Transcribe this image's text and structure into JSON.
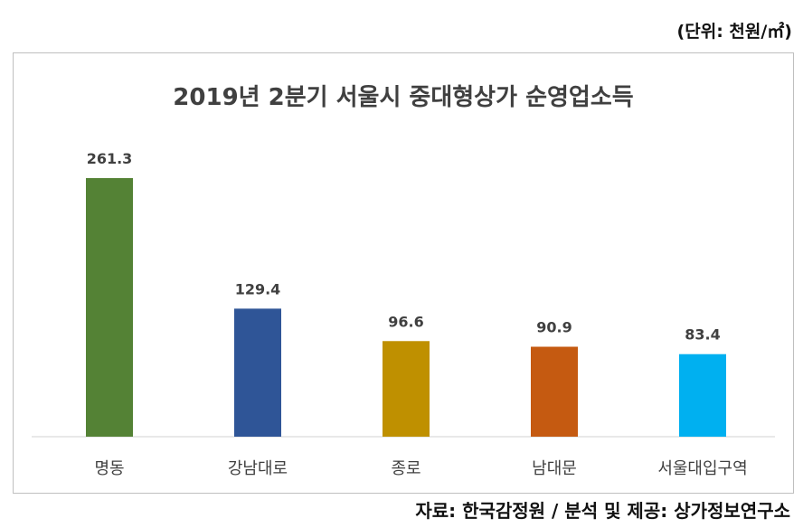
{
  "unit_label": "(단위: 천원/㎡)",
  "source_label": "자료: 한국감정원 / 분석 및 제공: 상가정보연구소",
  "chart_data": {
    "type": "bar",
    "title": "2019년 2분기 서울시 중대형상가 순영업소득",
    "xlabel": "",
    "ylabel": "",
    "ylim": [
      0,
      261.3
    ],
    "grid": false,
    "legend": "none",
    "categories": [
      "명동",
      "강남대로",
      "종로",
      "남대문",
      "서울대입구역"
    ],
    "values": [
      261.3,
      129.4,
      96.6,
      90.9,
      83.4
    ],
    "value_labels": [
      "261.3",
      "129.4",
      "96.6",
      "90.9",
      "83.4"
    ],
    "colors": [
      "#548235",
      "#2F5597",
      "#BF9000",
      "#C55A11",
      "#00B0F0"
    ]
  }
}
